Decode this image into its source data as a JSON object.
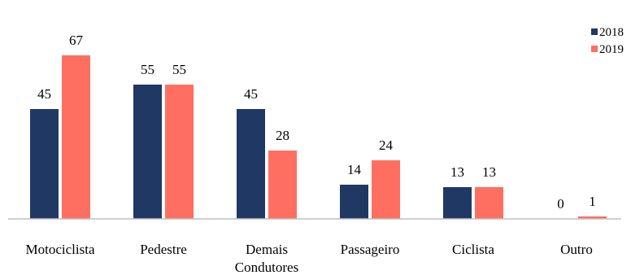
{
  "chart_data": {
    "type": "bar",
    "categories": [
      [
        "Motociclista"
      ],
      [
        "Pedestre"
      ],
      [
        "Demais",
        "Condutores"
      ],
      [
        "Passageiro"
      ],
      [
        "Ciclista"
      ],
      [
        "Outro"
      ]
    ],
    "series": [
      {
        "name": "2018",
        "color": "#203864",
        "values": [
          45,
          55,
          45,
          14,
          13,
          0
        ]
      },
      {
        "name": "2019",
        "color": "#FF6F61",
        "values": [
          67,
          55,
          28,
          24,
          13,
          1
        ]
      }
    ],
    "title": "",
    "xlabel": "",
    "ylabel": "",
    "ylim": [
      0,
      67
    ],
    "grid": false,
    "legend": "top-right",
    "data_labels": true
  }
}
